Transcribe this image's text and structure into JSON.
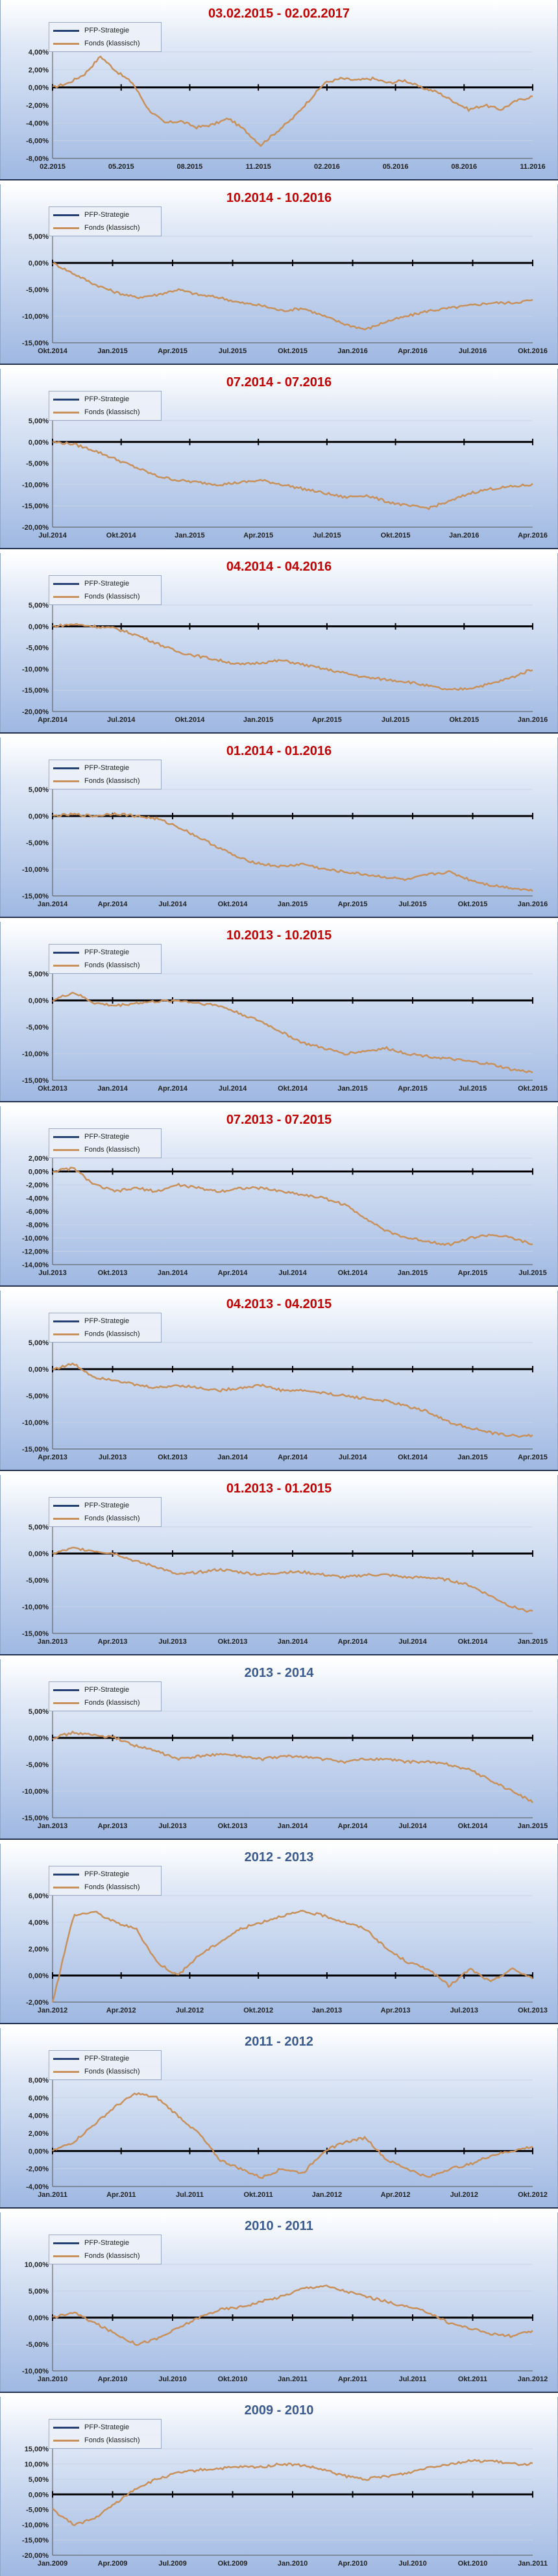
{
  "legend": {
    "strategy": "PFP-Strategie",
    "fund": "Fonds (klassisch)"
  },
  "colors": {
    "strategy": "#000000",
    "fund": "#c8905a",
    "title_red": "#c00000",
    "title_blue": "#3a5a8f"
  },
  "chart_data": [
    {
      "type": "line",
      "title": "03.02.2015 - 02.02.2017",
      "title_color": "red",
      "ylim": [
        -8,
        4
      ],
      "yticks": [
        4,
        2,
        0,
        -2,
        -4,
        -6,
        -8
      ],
      "xtick_labels": [
        "02.2015",
        "05.2015",
        "08.2015",
        "11.2015",
        "02.2016",
        "05.2016",
        "08.2016",
        "11.2016"
      ],
      "series": [
        {
          "name": "PFP-Strategie",
          "values": [
            0,
            0
          ]
        },
        {
          "name": "Fonds (klassisch)",
          "values": [
            0,
            0.5,
            1.5,
            3.5,
            1.8,
            0.5,
            -2.5,
            -4,
            -3.8,
            -4.5,
            -4.2,
            -3.5,
            -4.8,
            -6.5,
            -5,
            -3.5,
            -1.5,
            0.5,
            1,
            0.8,
            1,
            0.5,
            0.8,
            0,
            -0.5,
            -1.5,
            -2.5,
            -2,
            -2.5,
            -1.5,
            -1
          ]
        }
      ]
    },
    {
      "type": "line",
      "title": "10.2014 - 10.2016",
      "title_color": "red",
      "ylim": [
        -15,
        5
      ],
      "yticks": [
        5,
        0,
        -5,
        -10,
        -15
      ],
      "xtick_labels": [
        "Okt.2014",
        "Jan.2015",
        "Apr.2015",
        "Jul.2015",
        "Okt.2015",
        "Jan.2016",
        "Apr.2016",
        "Jul.2016",
        "Okt.2016"
      ],
      "series": [
        {
          "name": "PFP-Strategie",
          "values": [
            0,
            0
          ]
        },
        {
          "name": "Fonds (klassisch)",
          "values": [
            0,
            -2,
            -4,
            -5.5,
            -6.5,
            -6,
            -5,
            -6,
            -6.5,
            -7.5,
            -8,
            -9,
            -8.5,
            -10,
            -11.5,
            -12.5,
            -11,
            -10,
            -9,
            -8.5,
            -8,
            -7.5,
            -7.5,
            -7
          ]
        }
      ]
    },
    {
      "type": "line",
      "title": "07.2014 - 07.2016",
      "title_color": "red",
      "ylim": [
        -20,
        5
      ],
      "yticks": [
        5,
        0,
        -5,
        -10,
        -15,
        -20
      ],
      "xtick_labels": [
        "Jul.2014",
        "Okt.2014",
        "Jan.2015",
        "Apr.2015",
        "Jul.2015",
        "Okt.2015",
        "Jan.2016",
        "Apr.2016"
      ],
      "series": [
        {
          "name": "PFP-Strategie",
          "values": [
            0,
            0
          ]
        },
        {
          "name": "Fonds (klassisch)",
          "values": [
            0,
            -0.5,
            -2,
            -4,
            -6,
            -8,
            -9,
            -9.5,
            -10,
            -9.5,
            -9,
            -10,
            -11,
            -12,
            -13,
            -12.5,
            -14,
            -15,
            -15.5,
            -14,
            -12,
            -11,
            -10.5,
            -10
          ]
        }
      ]
    },
    {
      "type": "line",
      "title": "04.2014 - 04.2016",
      "title_color": "red",
      "ylim": [
        -20,
        5
      ],
      "yticks": [
        5,
        0,
        -5,
        -10,
        -15,
        -20
      ],
      "xtick_labels": [
        "Apr.2014",
        "Jul.2014",
        "Okt.2014",
        "Jan.2015",
        "Apr.2015",
        "Jul.2015",
        "Okt.2015",
        "Jan.2016"
      ],
      "series": [
        {
          "name": "PFP-Strategie",
          "values": [
            0,
            0
          ]
        },
        {
          "name": "Fonds (klassisch)",
          "values": [
            0,
            0.5,
            0,
            -0.5,
            -2,
            -4,
            -6,
            -7,
            -8,
            -9,
            -8.5,
            -8,
            -9,
            -10,
            -11,
            -12,
            -12.5,
            -13,
            -14,
            -15,
            -14.5,
            -13.5,
            -12,
            -10
          ]
        }
      ]
    },
    {
      "type": "line",
      "title": "01.2014 - 01.2016",
      "title_color": "red",
      "ylim": [
        -15,
        5
      ],
      "yticks": [
        5,
        0,
        -5,
        -10,
        -15
      ],
      "xtick_labels": [
        "Jan.2014",
        "Apr.2014",
        "Jul.2014",
        "Okt.2014",
        "Jan.2015",
        "Apr.2015",
        "Jul.2015",
        "Okt.2015",
        "Jan.2016"
      ],
      "series": [
        {
          "name": "PFP-Strategie",
          "values": [
            0,
            0
          ]
        },
        {
          "name": "Fonds (klassisch)",
          "values": [
            0,
            0.3,
            0,
            0.5,
            0,
            -0.5,
            -2,
            -4,
            -6,
            -8,
            -9,
            -9.5,
            -9,
            -10,
            -10.5,
            -11,
            -11.5,
            -12,
            -11,
            -10.5,
            -12,
            -13,
            -13.5,
            -14
          ]
        }
      ]
    },
    {
      "type": "line",
      "title": "10.2013 - 10.2015",
      "title_color": "red",
      "ylim": [
        -15,
        5
      ],
      "yticks": [
        5,
        0,
        -5,
        -10,
        -15
      ],
      "xtick_labels": [
        "Okt.2013",
        "Jan.2014",
        "Apr.2014",
        "Jul.2014",
        "Okt.2014",
        "Jan.2015",
        "Apr.2015",
        "Jul.2015",
        "Okt.2015"
      ],
      "series": [
        {
          "name": "PFP-Strategie",
          "values": [
            0,
            0
          ]
        },
        {
          "name": "Fonds (klassisch)",
          "values": [
            0,
            1.5,
            -0.5,
            -1,
            -0.5,
            -0.2,
            0,
            -0.5,
            -1,
            -2.5,
            -4,
            -6,
            -8,
            -9,
            -10,
            -9.5,
            -9,
            -10,
            -10.5,
            -11,
            -11.5,
            -12,
            -13,
            -13.5
          ]
        }
      ]
    },
    {
      "type": "line",
      "title": "07.2013 - 07.2015",
      "title_color": "red",
      "ylim": [
        -14,
        2
      ],
      "yticks": [
        2,
        0,
        -2,
        -4,
        -6,
        -8,
        -10,
        -12,
        -14
      ],
      "xtick_labels": [
        "Jul.2013",
        "Okt.2013",
        "Jan.2014",
        "Apr.2014",
        "Jul.2014",
        "Okt.2014",
        "Jan.2015",
        "Apr.2015",
        "Jul.2015"
      ],
      "series": [
        {
          "name": "PFP-Strategie",
          "values": [
            0,
            0
          ]
        },
        {
          "name": "Fonds (klassisch)",
          "values": [
            0,
            0.5,
            -2,
            -3,
            -2.5,
            -3,
            -2,
            -2.5,
            -3,
            -2.5,
            -2.5,
            -3,
            -3.5,
            -4,
            -5,
            -7,
            -9,
            -10,
            -10.5,
            -11,
            -10,
            -9.5,
            -10,
            -11
          ]
        }
      ]
    },
    {
      "type": "line",
      "title": "04.2013 - 04.2015",
      "title_color": "red",
      "ylim": [
        -15,
        5
      ],
      "yticks": [
        5,
        0,
        -5,
        -10,
        -15
      ],
      "xtick_labels": [
        "Apr.2013",
        "Jul.2013",
        "Okt.2013",
        "Jan.2014",
        "Apr.2014",
        "Jul.2014",
        "Okt.2014",
        "Jan.2015",
        "Apr.2015"
      ],
      "series": [
        {
          "name": "PFP-Strategie",
          "values": [
            0,
            0
          ]
        },
        {
          "name": "Fonds (klassisch)",
          "values": [
            0,
            1,
            -1.5,
            -2,
            -3,
            -3.5,
            -3,
            -3.5,
            -4,
            -3.5,
            -3,
            -4,
            -4,
            -4.5,
            -5,
            -5.5,
            -6,
            -7,
            -8,
            -10,
            -11,
            -12,
            -12.5,
            -12.5
          ]
        }
      ]
    },
    {
      "type": "line",
      "title": "01.2013 - 01.2015",
      "title_color": "red",
      "ylim": [
        -15,
        5
      ],
      "yticks": [
        5,
        0,
        -5,
        -10,
        -15
      ],
      "xtick_labels": [
        "Jan.2013",
        "Apr.2013",
        "Jul.2013",
        "Okt.2013",
        "Jan.2014",
        "Apr.2014",
        "Jul.2014",
        "Okt.2014",
        "Jan.2015"
      ],
      "series": [
        {
          "name": "PFP-Strategie",
          "values": [
            0,
            0
          ]
        },
        {
          "name": "Fonds (klassisch)",
          "values": [
            0,
            1,
            0.5,
            0,
            -1.5,
            -2.5,
            -4,
            -3.5,
            -3,
            -3.5,
            -4,
            -3.5,
            -3.5,
            -4,
            -4.5,
            -4,
            -4,
            -4.5,
            -4.5,
            -5,
            -6,
            -8,
            -10,
            -11
          ]
        }
      ]
    },
    {
      "type": "line",
      "title": "2013 - 2014",
      "title_color": "blue",
      "ylim": [
        -15,
        5
      ],
      "yticks": [
        5,
        0,
        -5,
        -10,
        -15
      ],
      "xtick_labels": [
        "Jan.2013",
        "Apr.2013",
        "Jul.2013",
        "Okt.2013",
        "Jan.2014",
        "Apr.2014",
        "Jul.2014",
        "Okt.2014",
        "Jan.2015"
      ],
      "series": [
        {
          "name": "PFP-Strategie",
          "values": [
            0,
            0
          ]
        },
        {
          "name": "Fonds (klassisch)",
          "values": [
            0,
            1,
            0.5,
            0,
            -1.5,
            -2.5,
            -4,
            -3.5,
            -3,
            -3.5,
            -4,
            -3.5,
            -3.5,
            -4,
            -4.5,
            -4,
            -4,
            -4.5,
            -4.5,
            -5,
            -6,
            -8,
            -10,
            -12
          ]
        }
      ]
    },
    {
      "type": "line",
      "title": "2012 - 2013",
      "title_color": "blue",
      "ylim": [
        -2,
        6
      ],
      "yticks": [
        6,
        4,
        2,
        0,
        -2
      ],
      "xtick_labels": [
        "Jan.2012",
        "Apr.2012",
        "Jul.2012",
        "Okt.2012",
        "Jan.2013",
        "Apr.2013",
        "Jul.2013",
        "Okt.2013"
      ],
      "series": [
        {
          "name": "PFP-Strategie",
          "values": [
            0,
            0
          ]
        },
        {
          "name": "Fonds (klassisch)",
          "values": [
            -2,
            4.5,
            4.8,
            4,
            3.5,
            1,
            0,
            1.5,
            2.5,
            3.5,
            4,
            4.5,
            4.8,
            4.5,
            4,
            3.5,
            2,
            1,
            0.5,
            -0.8,
            0.5,
            -0.5,
            0.5,
            -0.2
          ]
        }
      ]
    },
    {
      "type": "line",
      "title": "2011 - 2012",
      "title_color": "blue",
      "ylim": [
        -4,
        8
      ],
      "yticks": [
        8,
        6,
        4,
        2,
        0,
        -2,
        -4
      ],
      "xtick_labels": [
        "Jan.2011",
        "Apr.2011",
        "Jul.2011",
        "Okt.2011",
        "Jan.2012",
        "Apr.2012",
        "Jul.2012",
        "Okt.2012"
      ],
      "series": [
        {
          "name": "PFP-Strategie",
          "values": [
            0,
            0
          ]
        },
        {
          "name": "Fonds (klassisch)",
          "values": [
            0,
            1,
            3,
            5,
            6.5,
            6,
            4,
            2,
            -1,
            -2,
            -3,
            -2,
            -2.5,
            0,
            1,
            1.5,
            -1,
            -2,
            -3,
            -2,
            -1.5,
            -0.5,
            0,
            0.5
          ]
        }
      ]
    },
    {
      "type": "line",
      "title": "2010 - 2011",
      "title_color": "blue",
      "ylim": [
        -10,
        10
      ],
      "yticks": [
        10,
        5,
        0,
        -5,
        -10
      ],
      "xtick_labels": [
        "Jan.2010",
        "Apr.2010",
        "Jul.2010",
        "Okt.2010",
        "Jan.2011",
        "Apr.2011",
        "Jul.2011",
        "Okt.2011",
        "Jan.2012"
      ],
      "series": [
        {
          "name": "PFP-Strategie",
          "values": [
            0,
            0
          ]
        },
        {
          "name": "Fonds (klassisch)",
          "values": [
            0,
            1,
            -1,
            -3,
            -5,
            -4,
            -2,
            0,
            1.5,
            2,
            3,
            4,
            5.5,
            6,
            5,
            4,
            3,
            2,
            1,
            -1,
            -2,
            -3,
            -3.5,
            -2.5
          ]
        }
      ]
    },
    {
      "type": "line",
      "title": "2009 - 2010",
      "title_color": "blue",
      "ylim": [
        -20,
        15
      ],
      "yticks": [
        15,
        10,
        5,
        0,
        -5,
        -10,
        -15,
        -20
      ],
      "xtick_labels": [
        "Jan.2009",
        "Apr.2009",
        "Jul.2009",
        "Okt.2009",
        "Jan.2010",
        "Apr.2010",
        "Jul.2010",
        "Okt.2010",
        "Jan.2011"
      ],
      "series": [
        {
          "name": "PFP-Strategie",
          "values": [
            0,
            0
          ]
        },
        {
          "name": "Fonds (klassisch)",
          "values": [
            -5,
            -10,
            -8,
            -3,
            2,
            5,
            7,
            8,
            8.5,
            9,
            9,
            10,
            9.5,
            8,
            6,
            5,
            6,
            7,
            9,
            10,
            11,
            11,
            10,
            10
          ]
        }
      ]
    }
  ]
}
